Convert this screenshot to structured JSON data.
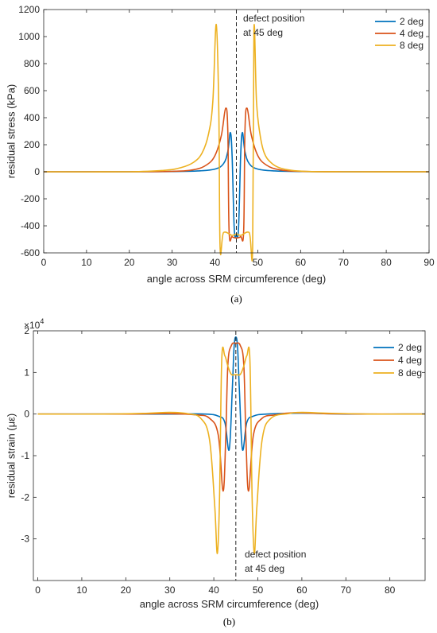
{
  "chart_data": [
    {
      "type": "line",
      "panel_label": "(a)",
      "xlabel": "angle across SRM circumference (deg)",
      "ylabel": "residual stress (kPa)",
      "xlim": [
        0,
        90
      ],
      "ylim": [
        -600,
        1200
      ],
      "xticks": [
        0,
        10,
        20,
        30,
        40,
        50,
        60,
        70,
        80,
        90
      ],
      "yticks": [
        -600,
        -400,
        -200,
        0,
        200,
        400,
        600,
        800,
        1000,
        1200
      ],
      "grid": false,
      "legend_position": "top-right",
      "defect_line_x": 45,
      "annotation": [
        "defect position",
        "at 45 deg"
      ],
      "series": [
        {
          "name": "2 deg",
          "color": "#0072BD",
          "x": [
            0,
            20,
            30,
            36,
            40,
            42,
            43,
            43.6,
            44,
            44.5,
            45,
            45.5,
            46,
            46.4,
            47,
            48,
            50,
            54,
            60,
            70,
            90
          ],
          "y": [
            0,
            0,
            2,
            6,
            20,
            60,
            150,
            290,
            120,
            -420,
            -470,
            -420,
            120,
            290,
            150,
            60,
            20,
            6,
            2,
            0,
            0
          ]
        },
        {
          "name": "4 deg",
          "color": "#D95319",
          "x": [
            0,
            20,
            30,
            35,
            38,
            40,
            41.5,
            42.5,
            43,
            43.3,
            44,
            45,
            46,
            46.7,
            47,
            47.5,
            48.5,
            50,
            52,
            55,
            60,
            70,
            90
          ],
          "y": [
            0,
            0,
            3,
            15,
            50,
            120,
            270,
            470,
            300,
            -440,
            -480,
            -490,
            -480,
            -440,
            300,
            470,
            270,
            120,
            50,
            15,
            3,
            0,
            0
          ]
        },
        {
          "name": "8 deg",
          "color": "#EDB120",
          "x": [
            0,
            20,
            28,
            32,
            35,
            37,
            38.5,
            39.5,
            40.3,
            40.9,
            41.2,
            42,
            44,
            45,
            46,
            48,
            48.8,
            49.1,
            49.7,
            50.5,
            51.5,
            53,
            55,
            58,
            62,
            70,
            90
          ],
          "y": [
            0,
            0,
            10,
            30,
            70,
            140,
            280,
            520,
            1090,
            450,
            -560,
            -450,
            -470,
            -460,
            -470,
            -450,
            -560,
            1050,
            520,
            280,
            140,
            70,
            30,
            10,
            2,
            0,
            0
          ]
        }
      ]
    },
    {
      "type": "line",
      "panel_label": "(b)",
      "xlabel": "angle across SRM circumference (deg)",
      "ylabel": "residual strain (με)",
      "y_multiplier": "×10",
      "y_multiplier_exponent": "4",
      "xlim": [
        -1,
        88
      ],
      "ylim": [
        -4,
        2
      ],
      "xticks": [
        0,
        10,
        20,
        30,
        40,
        50,
        60,
        70,
        80
      ],
      "yticks": [
        -3,
        -2,
        -1,
        0,
        1,
        2
      ],
      "grid": false,
      "legend_position": "top-right",
      "defect_line_x": 45,
      "annotation": [
        "defect position",
        "at 45 deg"
      ],
      "series": [
        {
          "name": "2 deg",
          "color": "#0072BD",
          "x": [
            0,
            20,
            30,
            38,
            41,
            42.5,
            43.5,
            44.2,
            44.6,
            45,
            45.4,
            45.8,
            46.5,
            47.5,
            49,
            52,
            60,
            70,
            88
          ],
          "y": [
            0,
            0,
            0,
            0,
            -0.05,
            -0.2,
            -0.85,
            0.6,
            1.6,
            1.85,
            1.6,
            0.6,
            -0.85,
            -0.2,
            -0.05,
            0,
            0.02,
            0,
            0
          ]
        },
        {
          "name": "4 deg",
          "color": "#D95319",
          "x": [
            0,
            20,
            30,
            36,
            39,
            41,
            42.1,
            42.7,
            43.2,
            44,
            45,
            46,
            46.8,
            47.3,
            47.9,
            49,
            51,
            54,
            58,
            65,
            75,
            88
          ],
          "y": [
            0,
            0,
            0.01,
            -0.02,
            -0.1,
            -0.5,
            -1.85,
            -0.6,
            1.2,
            1.65,
            1.7,
            1.65,
            1.2,
            -0.6,
            -1.85,
            -0.5,
            -0.1,
            -0.02,
            0.03,
            0.01,
            0,
            0
          ]
        },
        {
          "name": "8 deg",
          "color": "#EDB120",
          "x": [
            0,
            15,
            25,
            30,
            34,
            37,
            39,
            40.2,
            40.8,
            41.3,
            41.8,
            42.5,
            43.2,
            44,
            45,
            46,
            46.8,
            47.5,
            48.2,
            48.7,
            49.2,
            49.8,
            51,
            53,
            57,
            60,
            66,
            75,
            88
          ],
          "y": [
            0,
            0,
            0.02,
            0.04,
            0.01,
            -0.1,
            -0.6,
            -2.2,
            -3.35,
            -2.0,
            1.3,
            1.4,
            1.15,
            0.95,
            0.95,
            0.95,
            1.15,
            1.4,
            1.3,
            -2.0,
            -3.35,
            -2.2,
            -0.6,
            -0.1,
            0.01,
            0.04,
            0.02,
            0,
            0
          ]
        }
      ]
    }
  ]
}
